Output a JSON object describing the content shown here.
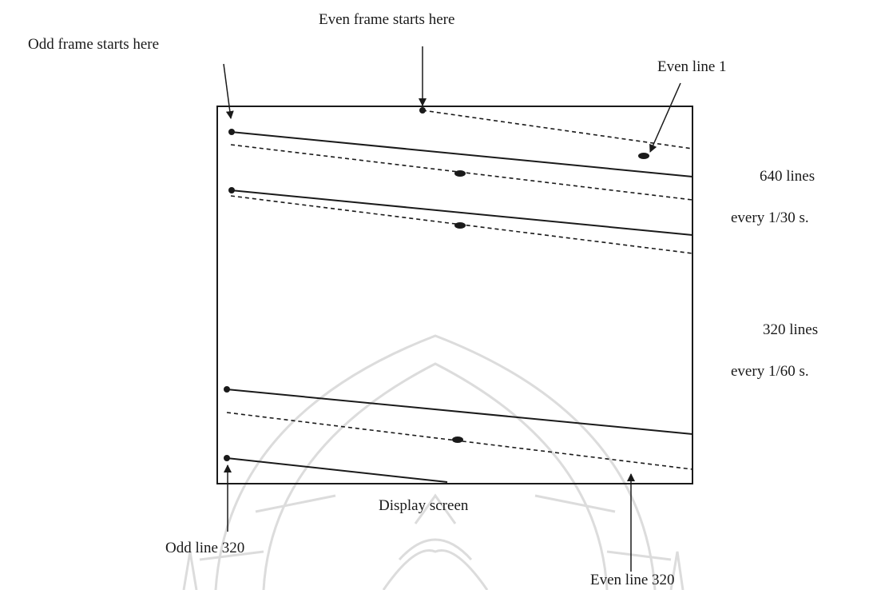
{
  "labels": {
    "odd_frame_start": "Odd frame starts here",
    "even_frame_start": "Even frame starts here",
    "even_line_1": "Even line 1",
    "lines_640": "640 lines",
    "every_1_30": "every 1/30 s.",
    "lines_320": "320 lines",
    "every_1_60": "every 1/60 s.",
    "display_screen": "Display screen",
    "odd_line_320": "Odd line 320",
    "even_line_320": "Even line 320"
  },
  "colors": {
    "ink": "#1a1a1a",
    "watermark": "#dcdcdc"
  }
}
